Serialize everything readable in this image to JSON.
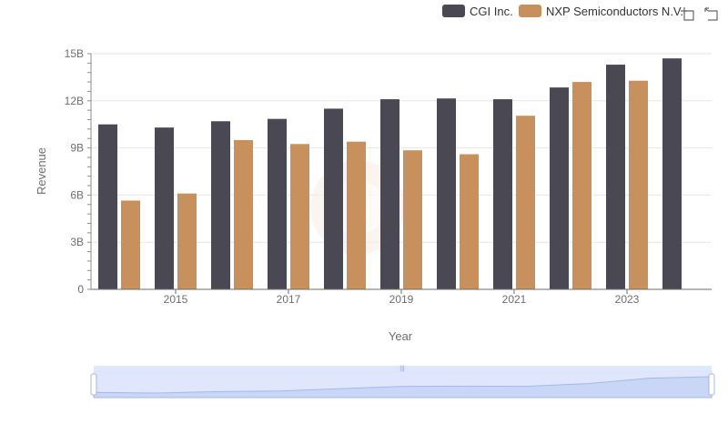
{
  "chart_data": {
    "type": "bar",
    "x": [
      2014,
      2015,
      2016,
      2017,
      2018,
      2019,
      2020,
      2021,
      2022,
      2023,
      2024
    ],
    "x_tick_labels": [
      "2015",
      "2017",
      "2019",
      "2021",
      "2023"
    ],
    "y_tick_labels": [
      "0",
      "3B",
      "6B",
      "9B",
      "12B",
      "15B"
    ],
    "ylim": [
      0,
      15000000000
    ],
    "xlabel": "Year",
    "ylabel": "Revenue",
    "legend_position": "top-right",
    "grid": true,
    "series": [
      {
        "name": "CGI Inc.",
        "color": "#4a4853",
        "values": [
          10500000000,
          10300000000,
          10700000000,
          10850000000,
          11500000000,
          12100000000,
          12150000000,
          12100000000,
          12850000000,
          14300000000,
          14700000000
        ]
      },
      {
        "name": "NXP Semiconductors N.V.",
        "color": "#c8905c",
        "values": [
          5650000000,
          6100000000,
          9500000000,
          9250000000,
          9400000000,
          8850000000,
          8600000000,
          11050000000,
          13200000000,
          13280000000,
          null
        ]
      }
    ]
  },
  "toolbox": {
    "zoom_icon": "zoom-select-icon",
    "reset_icon": "zoom-reset-icon"
  },
  "slider": {
    "range": [
      0,
      100
    ],
    "fill_color": "#dbe4fb"
  }
}
